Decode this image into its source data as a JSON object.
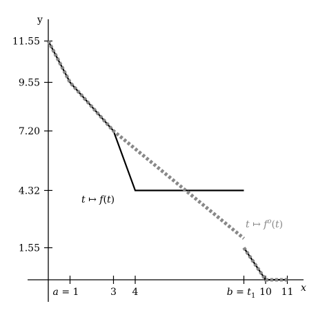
{
  "chart_data": {
    "type": "line",
    "xlabel": "x",
    "ylabel": "y",
    "xlim": [
      0,
      12
    ],
    "ylim": [
      0,
      12.5
    ],
    "x_ticks": [
      {
        "value": 1,
        "label": "a = 1"
      },
      {
        "value": 3,
        "label": "3"
      },
      {
        "value": 4,
        "label": "4"
      },
      {
        "value": 9,
        "label": "b = t1"
      },
      {
        "value": 10,
        "label": "10"
      },
      {
        "value": 11,
        "label": "11"
      }
    ],
    "y_ticks": [
      {
        "value": 11.55,
        "label": "11.55"
      },
      {
        "value": 9.55,
        "label": "9.55"
      },
      {
        "value": 7.2,
        "label": "7.20"
      },
      {
        "value": 4.32,
        "label": "4.32"
      },
      {
        "value": 1.55,
        "label": "1.55"
      }
    ],
    "series": [
      {
        "name": "t ↦ f(t)",
        "style": "solid",
        "color": "#000000",
        "x": [
          3,
          4,
          9
        ],
        "y": [
          7.2,
          4.32,
          4.32
        ]
      },
      {
        "name": "t ↦ fº(t)",
        "style": "dotted",
        "color": "#888888",
        "x": [
          0,
          1,
          3,
          9
        ],
        "y": [
          11.55,
          9.55,
          7.2,
          2.0
        ]
      },
      {
        "name": "",
        "style": "solid",
        "color": "#000000",
        "x": [
          0,
          1,
          3
        ],
        "y": [
          11.55,
          9.55,
          7.2
        ]
      },
      {
        "name": "",
        "style": "solid",
        "color": "#000000",
        "x": [
          9,
          10,
          11
        ],
        "y": [
          1.55,
          0,
          0
        ]
      },
      {
        "name": "",
        "style": "dotted",
        "color": "#888888",
        "x": [
          9,
          10,
          11
        ],
        "y": [
          1.55,
          0,
          0
        ]
      }
    ]
  }
}
